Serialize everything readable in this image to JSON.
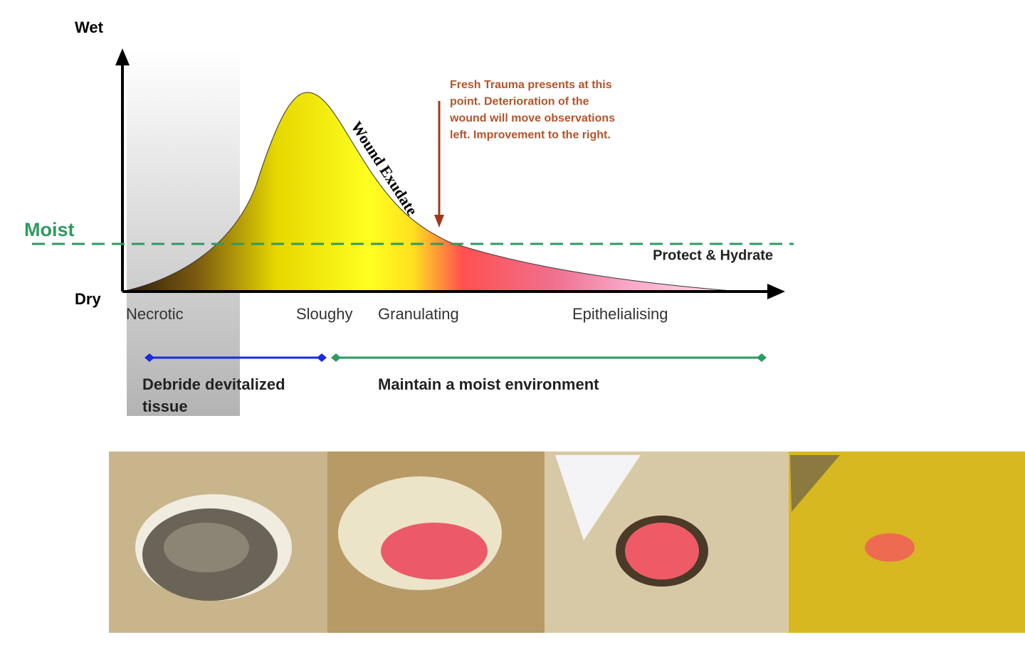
{
  "axis": {
    "top_label": "Wet",
    "bottom_label": "Dry",
    "moist_label": "Moist"
  },
  "curve_label": "Wound Exudate",
  "annotation": {
    "lines": [
      "Fresh Trauma presents at this",
      "point. Deterioration of the",
      "wound will move observations",
      "left. Improvement to the right."
    ]
  },
  "protect_label": "Protect & Hydrate",
  "stages": [
    "Necrotic",
    "Sloughy",
    "Granulating",
    "Epithelialising"
  ],
  "actions": {
    "debride": [
      "Debride devitalized",
      "tissue"
    ],
    "maintain": "Maintain a moist environment"
  }
}
